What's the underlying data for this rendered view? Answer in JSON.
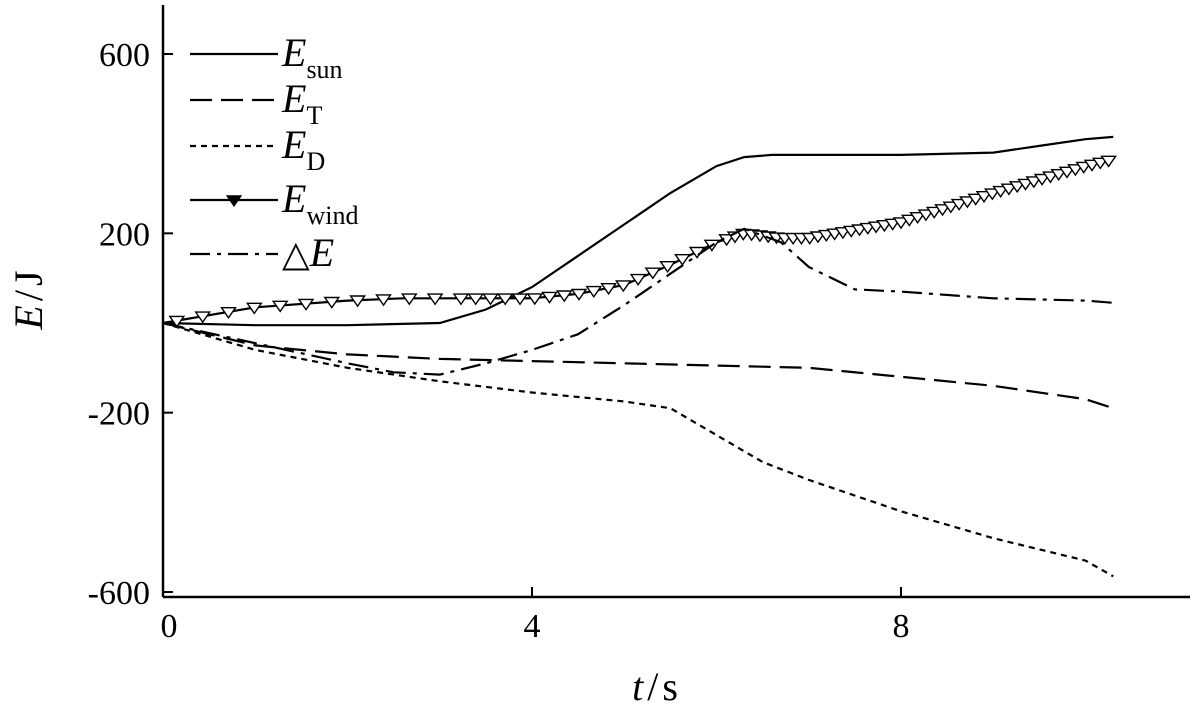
{
  "chart_data": {
    "type": "line",
    "title": "",
    "xlabel": {
      "var": "t",
      "unit": "s"
    },
    "ylabel": {
      "var": "E",
      "unit": "J"
    },
    "xlim": [
      0,
      11.2
    ],
    "ylim": [
      -600,
      700
    ],
    "xticks": [
      0,
      4,
      8
    ],
    "yticks": [
      600,
      200,
      -200,
      -600
    ],
    "grid": false,
    "legend_position": "top-left",
    "series": [
      {
        "name": "E",
        "name_sub": "sun",
        "style": "solid",
        "x": [
          0,
          1,
          2,
          3,
          3.5,
          4,
          4.5,
          5,
          5.5,
          6,
          6.3,
          6.6,
          7,
          8,
          9,
          9.5,
          10,
          10.3
        ],
        "y": [
          0,
          -5,
          -5,
          0,
          30,
          80,
          150,
          220,
          290,
          350,
          370,
          375,
          375,
          375,
          380,
          395,
          410,
          415
        ]
      },
      {
        "name": "E",
        "name_sub": "T",
        "style": "dashed",
        "x": [
          0,
          1,
          2,
          3,
          4,
          5,
          6,
          7,
          8,
          9,
          10,
          10.3
        ],
        "y": [
          0,
          -50,
          -70,
          -80,
          -85,
          -90,
          -95,
          -100,
          -120,
          -140,
          -170,
          -190
        ]
      },
      {
        "name": "E",
        "name_sub": "D",
        "style": "dotted",
        "x": [
          0,
          1,
          2,
          3,
          4,
          5,
          5.5,
          6,
          6.5,
          7,
          8,
          9,
          10,
          10.3
        ],
        "y": [
          0,
          -60,
          -100,
          -130,
          -155,
          -175,
          -190,
          -250,
          -310,
          -350,
          -420,
          -480,
          -530,
          -565
        ]
      },
      {
        "name": "E",
        "name_sub": "wind",
        "style": "marker",
        "x": [
          0,
          1,
          2,
          2.6,
          3,
          3.5,
          4,
          4.5,
          5,
          5.5,
          6,
          6.3,
          6.7,
          7,
          8,
          9,
          10,
          10.3
        ],
        "y": [
          0,
          35,
          50,
          55,
          55,
          55,
          55,
          65,
          85,
          130,
          180,
          200,
          190,
          190,
          225,
          290,
          350,
          365
        ]
      },
      {
        "name": "△E",
        "name_sub": "",
        "style": "dash-dot",
        "x": [
          0,
          1,
          2,
          2.5,
          3,
          3.5,
          4,
          4.5,
          5,
          5.5,
          6,
          6.3,
          6.7,
          7,
          7.5,
          8,
          9,
          10,
          10.3
        ],
        "y": [
          0,
          -45,
          -90,
          -110,
          -115,
          -90,
          -60,
          -25,
          40,
          110,
          180,
          210,
          180,
          125,
          75,
          70,
          55,
          50,
          45
        ]
      }
    ]
  }
}
